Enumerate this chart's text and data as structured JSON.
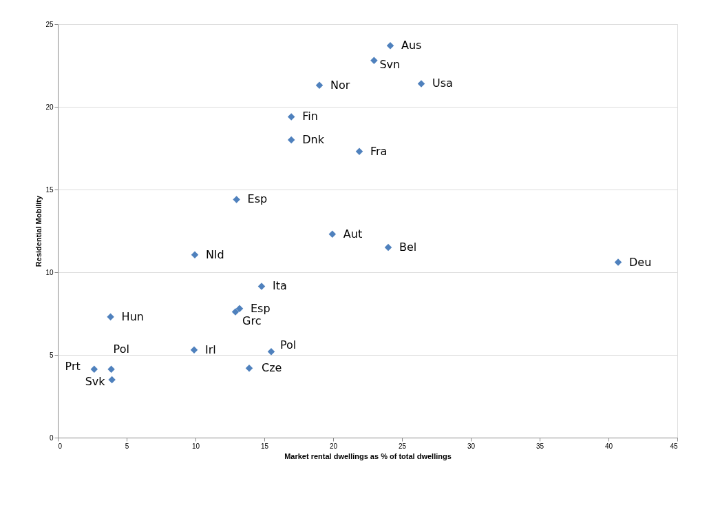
{
  "chart_data": {
    "type": "scatter",
    "xlabel": "Market rental dwellings as % of total dwellings",
    "ylabel": "Residential Mobility",
    "x": [
      24.15,
      22.97,
      26.4,
      19.0,
      16.96,
      16.96,
      21.9,
      12.98,
      19.94,
      24.0,
      9.95,
      40.7,
      14.8,
      13.2,
      12.9,
      3.83,
      9.9,
      15.5,
      3.88,
      2.64,
      3.93,
      13.9
    ],
    "series": [
      {
        "color": "#4f81bd",
        "values": [
          23.7,
          22.8,
          21.4,
          21.3,
          19.4,
          18.0,
          17.3,
          14.4,
          12.3,
          11.5,
          11.05,
          10.6,
          9.15,
          7.8,
          7.6,
          7.3,
          5.3,
          5.2,
          4.14,
          4.14,
          3.5,
          4.2
        ]
      }
    ],
    "annotations": [
      {
        "text": "Aus",
        "x": 24.15,
        "y": 23.7
      },
      {
        "text": "Svn",
        "x": 22.97,
        "y": 22.8
      },
      {
        "text": "Usa",
        "x": 26.4,
        "y": 21.4
      },
      {
        "text": "Nor",
        "x": 19.0,
        "y": 21.3
      },
      {
        "text": "Fin",
        "x": 16.96,
        "y": 19.4
      },
      {
        "text": "Dnk",
        "x": 16.96,
        "y": 18.0
      },
      {
        "text": "Fra",
        "x": 21.9,
        "y": 17.3
      },
      {
        "text": "Esp",
        "x": 12.98,
        "y": 14.4
      },
      {
        "text": "Aut",
        "x": 19.94,
        "y": 12.3
      },
      {
        "text": "Bel",
        "x": 24.0,
        "y": 11.5
      },
      {
        "text": "Nld",
        "x": 9.95,
        "y": 11.05
      },
      {
        "text": "Deu",
        "x": 40.7,
        "y": 10.6
      },
      {
        "text": "Ita",
        "x": 14.8,
        "y": 9.15
      },
      {
        "text": "Esp",
        "x": 13.2,
        "y": 7.8
      },
      {
        "text": "Grc",
        "x": 12.9,
        "y": 7.6
      },
      {
        "text": "Hun",
        "x": 3.83,
        "y": 7.3
      },
      {
        "text": "Irl",
        "x": 9.9,
        "y": 5.3
      },
      {
        "text": "Pol",
        "x": 15.5,
        "y": 5.2
      },
      {
        "text": "Pol",
        "x": 3.88,
        "y": 4.14
      },
      {
        "text": "Prt",
        "x": 2.64,
        "y": 4.14
      },
      {
        "text": "Svk",
        "x": 3.93,
        "y": 3.5
      },
      {
        "text": "Cze",
        "x": 13.9,
        "y": 4.2
      }
    ],
    "xlim": [
      0,
      45
    ],
    "xticks": [
      0,
      5,
      10,
      15,
      20,
      25,
      30,
      35,
      40,
      45
    ],
    "ylim": [
      0,
      25
    ],
    "yticks": [
      0,
      5,
      10,
      15,
      20,
      25
    ],
    "grid": "y",
    "marker": "diamond"
  }
}
